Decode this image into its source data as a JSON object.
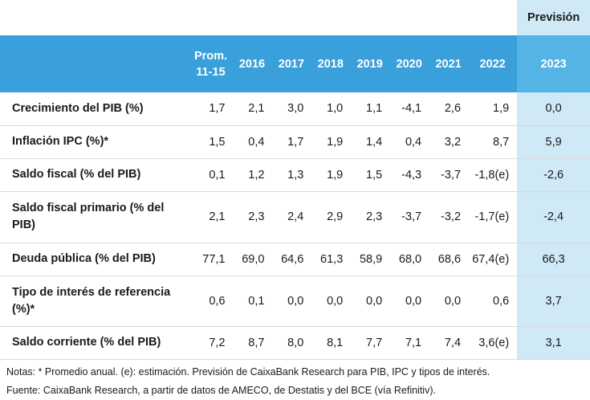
{
  "forecast_title": "Previsión",
  "columns": {
    "prom_line1": "Prom.",
    "prom_line2": "11-15",
    "years": [
      "2016",
      "2017",
      "2018",
      "2019",
      "2020",
      "2021",
      "2022"
    ],
    "forecast_year": "2023"
  },
  "rows": [
    {
      "label": "Crecimiento del PIB (%)",
      "prom": "1,7",
      "values": [
        "2,1",
        "3,0",
        "1,0",
        "1,1",
        "-4,1",
        "2,6",
        "1,9"
      ],
      "forecast": "0,0"
    },
    {
      "label": "Inflación IPC (%)*",
      "prom": "1,5",
      "values": [
        "0,4",
        "1,7",
        "1,9",
        "1,4",
        "0,4",
        "3,2",
        "8,7"
      ],
      "forecast": "5,9"
    },
    {
      "label": "Saldo fiscal (% del PIB)",
      "prom": "0,1",
      "values": [
        "1,2",
        "1,3",
        "1,9",
        "1,5",
        "-4,3",
        "-3,7",
        "-1,8(e)"
      ],
      "forecast": "-2,6"
    },
    {
      "label": "Saldo fiscal primario (% del PIB)",
      "prom": "2,1",
      "values": [
        "2,3",
        "2,4",
        "2,9",
        "2,3",
        "-3,7",
        "-3,2",
        "-1,7(e)"
      ],
      "forecast": "-2,4"
    },
    {
      "label": "Deuda pública (% del PIB)",
      "prom": "77,1",
      "values": [
        "69,0",
        "64,6",
        "61,3",
        "58,9",
        "68,0",
        "68,6",
        "67,4(e)"
      ],
      "forecast": "66,3"
    },
    {
      "label": "Tipo de interés de referencia (%)*",
      "prom": "0,6",
      "values": [
        "0,1",
        "0,0",
        "0,0",
        "0,0",
        "0,0",
        "0,0",
        "0,6"
      ],
      "forecast": "3,7"
    },
    {
      "label": "Saldo corriente (% del PIB)",
      "prom": "7,2",
      "values": [
        "8,7",
        "8,0",
        "8,1",
        "7,7",
        "7,1",
        "7,4",
        "3,6(e)"
      ],
      "forecast": "3,1"
    }
  ],
  "notes": "Notas: * Promedio anual. (e): estimación. Previsión de CaixaBank Research para PIB, IPC y tipos de interés.",
  "source": "Fuente: CaixaBank Research, a partir de datos de AMECO, de Destatis y del BCE (vía Refinitiv)."
}
